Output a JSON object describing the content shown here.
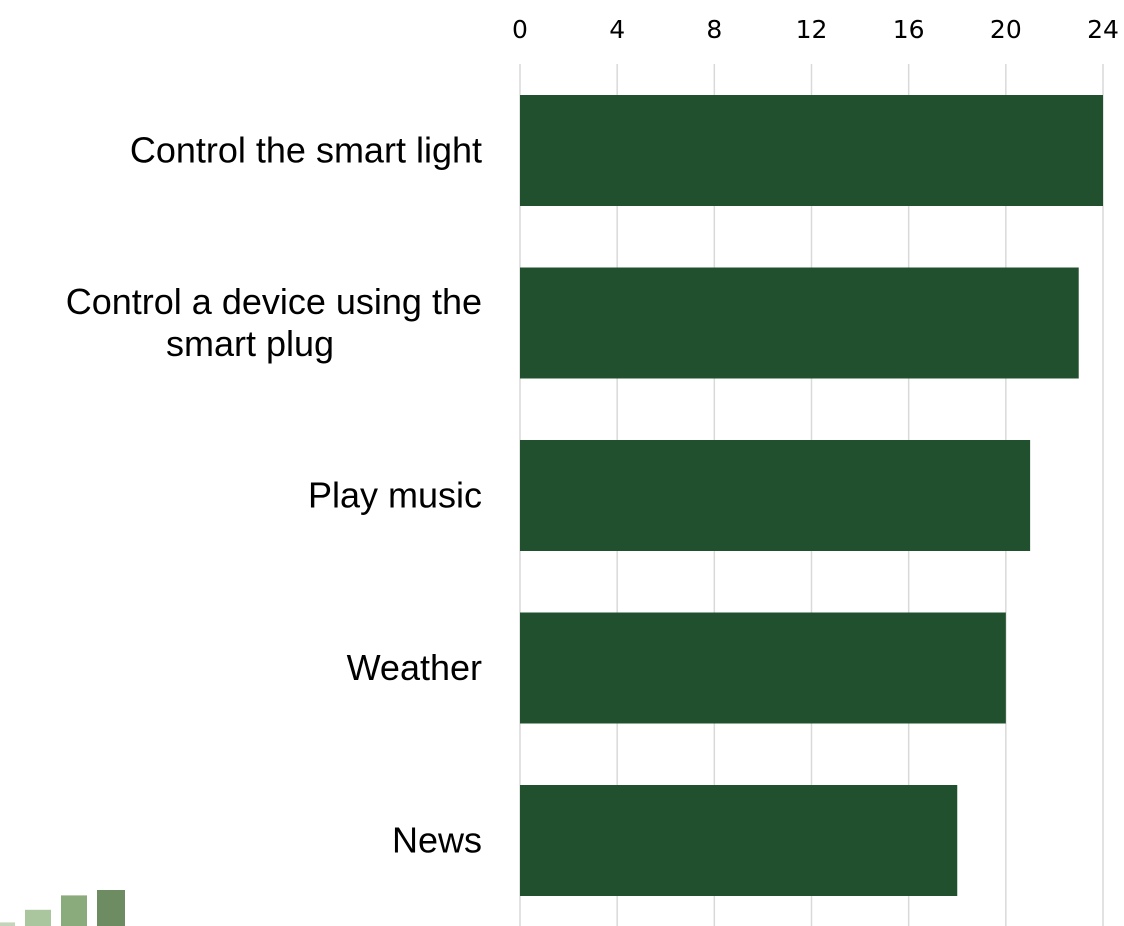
{
  "chart_data": {
    "type": "bar",
    "orientation": "horizontal",
    "categories": [
      [
        "Control the smart light"
      ],
      [
        "Control a device using the",
        "smart plug"
      ],
      [
        "Play music"
      ],
      [
        "Weather"
      ],
      [
        "News"
      ]
    ],
    "values": [
      24,
      23,
      21,
      20,
      18
    ],
    "x_ticks": [
      0,
      4,
      8,
      12,
      16,
      20,
      24
    ],
    "xlim": [
      0,
      24
    ],
    "x_axis_position": "top",
    "grid": "vertical",
    "legend": "none",
    "colors": {
      "bar": "#21502e",
      "grid": "#d9d9d9",
      "decor_bars": [
        "#c3d4bb",
        "#a9c69f",
        "#8aab7c",
        "#6e8c61"
      ]
    },
    "decor_levels": [
      0.1,
      0.45,
      0.85,
      1.0
    ]
  }
}
